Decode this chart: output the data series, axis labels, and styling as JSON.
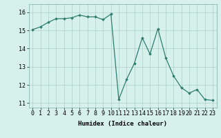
{
  "x": [
    0,
    1,
    2,
    3,
    4,
    5,
    6,
    7,
    8,
    9,
    10,
    11,
    12,
    13,
    14,
    15,
    16,
    17,
    18,
    19,
    20,
    21,
    22,
    23
  ],
  "y": [
    15.05,
    15.2,
    15.45,
    15.65,
    15.65,
    15.7,
    15.85,
    15.75,
    15.75,
    15.6,
    15.9,
    11.2,
    12.3,
    13.2,
    14.6,
    13.7,
    15.1,
    13.5,
    12.5,
    11.85,
    11.55,
    11.75,
    11.2,
    11.15
  ],
  "line_color": "#2e7d6e",
  "marker": "D",
  "marker_size": 1.8,
  "bg_color": "#d6f0eb",
  "grid_color": "#b0cfc9",
  "xlabel": "Humidex (Indice chaleur)",
  "xlim": [
    -0.5,
    23.5
  ],
  "ylim": [
    10.75,
    16.45
  ],
  "yticks": [
    11,
    12,
    13,
    14,
    15,
    16
  ],
  "xticks": [
    0,
    1,
    2,
    3,
    4,
    5,
    6,
    7,
    8,
    9,
    10,
    11,
    12,
    13,
    14,
    15,
    16,
    17,
    18,
    19,
    20,
    21,
    22,
    23
  ],
  "label_fontsize": 6.5,
  "tick_fontsize": 6.0
}
